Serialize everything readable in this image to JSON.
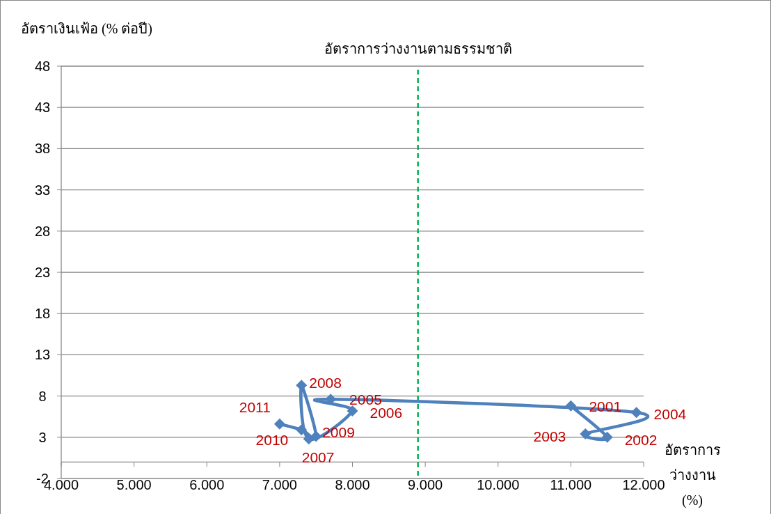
{
  "chart_data": {
    "type": "line",
    "ylabel": "อัตราเงินเฟ้อ (% ต่อปี)",
    "xlabel": "อัตราการว่างงาน (%)",
    "x": [
      11.0,
      11.5,
      11.2,
      11.9,
      7.7,
      8.0,
      7.4,
      7.3,
      7.5,
      7.3,
      7.0
    ],
    "series": [
      {
        "color": "#4f81bd",
        "values": [
          6.8,
          3.0,
          3.4,
          6.0,
          7.6,
          6.2,
          2.8,
          9.3,
          3.1,
          3.9,
          4.6
        ]
      }
    ],
    "marker": "diamond",
    "xlim": [
      4,
      12
    ],
    "xticks": [
      {
        "value": 4,
        "label": "4.000"
      },
      {
        "value": 5,
        "label": "5.000"
      },
      {
        "value": 6,
        "label": "6.000"
      },
      {
        "value": 7,
        "label": "7.000"
      },
      {
        "value": 8,
        "label": "8.000"
      },
      {
        "value": 9,
        "label": "9.000"
      },
      {
        "value": 10,
        "label": "10.000"
      },
      {
        "value": 11,
        "label": "11.000"
      },
      {
        "value": 12,
        "label": "12.000"
      }
    ],
    "ylim": [
      -2,
      48
    ],
    "yticks": [
      -2,
      3,
      8,
      13,
      18,
      23,
      28,
      33,
      38,
      43,
      48
    ],
    "grid": "y",
    "ref_lines": [
      {
        "axis": "x",
        "value": 8.9,
        "label": "อัตราการว่างงานตามธรรมชาติ",
        "color": "#00b050",
        "line_style": "dashed"
      }
    ],
    "annotations": [
      {
        "text": "2001",
        "x": 11.0,
        "y": 6.8
      },
      {
        "text": "2002",
        "x": 11.5,
        "y": 3.0
      },
      {
        "text": "2003",
        "x": 11.2,
        "y": 3.4
      },
      {
        "text": "2004",
        "x": 11.9,
        "y": 6.0
      },
      {
        "text": "2005",
        "x": 7.7,
        "y": 7.6
      },
      {
        "text": "2006",
        "x": 8.0,
        "y": 6.2
      },
      {
        "text": "2007",
        "x": 7.4,
        "y": 2.8
      },
      {
        "text": "2008",
        "x": 7.3,
        "y": 9.3
      },
      {
        "text": "2009",
        "x": 7.5,
        "y": 3.1
      },
      {
        "text": "2010",
        "x": 7.3,
        "y": 3.9
      },
      {
        "text": "2011",
        "x": 7.0,
        "y": 4.6
      }
    ]
  }
}
